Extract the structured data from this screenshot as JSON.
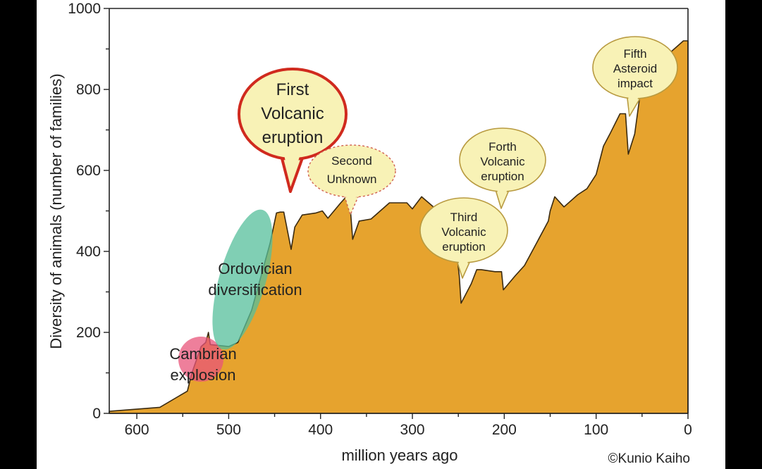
{
  "chart_data": {
    "type": "area",
    "xlabel": "million years ago",
    "ylabel": "Diversity of animals (number of families)",
    "xlim": [
      630,
      0
    ],
    "ylim": [
      0,
      1000
    ],
    "x_ticks": [
      "600",
      "500",
      "400",
      "300",
      "200",
      "100",
      "0"
    ],
    "y_ticks": [
      "0",
      "200",
      "400",
      "600",
      "800",
      "1000"
    ],
    "grid": false,
    "fill_color": "#E6A32E",
    "series": [
      {
        "x": [
          630,
          575,
          545,
          540,
          530,
          525,
          522,
          520,
          500,
          490,
          475,
          455,
          448,
          444,
          440,
          432,
          428,
          420,
          405,
          398,
          392,
          378,
          372,
          368,
          365,
          358,
          345,
          325,
          315,
          306,
          300,
          290,
          272,
          262,
          255,
          252,
          249,
          247,
          236,
          230,
          225,
          210,
          203,
          201,
          188,
          178,
          165,
          152,
          150,
          145,
          135,
          120,
          110,
          100,
          92,
          85,
          74,
          68,
          65,
          58,
          52,
          45,
          32,
          20,
          5,
          0
        ],
        "y": [
          5,
          15,
          55,
          100,
          165,
          175,
          200,
          170,
          165,
          175,
          255,
          420,
          495,
          497,
          497,
          405,
          460,
          490,
          495,
          500,
          482,
          520,
          535,
          520,
          430,
          475,
          480,
          520,
          520,
          520,
          505,
          535,
          500,
          490,
          460,
          400,
          340,
          272,
          320,
          355,
          355,
          350,
          350,
          305,
          340,
          365,
          420,
          475,
          500,
          535,
          510,
          540,
          555,
          590,
          660,
          690,
          740,
          740,
          640,
          690,
          790,
          830,
          860,
          890,
          920,
          920
        ]
      }
    ],
    "annotations": [
      {
        "label": [
          "Cambrian",
          "explosion"
        ],
        "color": "#E8547A"
      },
      {
        "label": [
          "Ordovician",
          "diversification"
        ],
        "color": "#55BF9B"
      },
      {
        "label": [
          "First",
          "Volcanic",
          "eruption"
        ],
        "border": "#D02A1E"
      },
      {
        "label": [
          "Second",
          "Unknown"
        ],
        "border": "#D06050"
      },
      {
        "label": [
          "Third",
          "Volcanic",
          "eruption"
        ],
        "border": "#B89A40"
      },
      {
        "label": [
          "Forth",
          "Volcanic",
          "eruption"
        ],
        "border": "#B89A40"
      },
      {
        "label": [
          "Fifth",
          "Asteroid",
          "impact"
        ],
        "border": "#B89A40"
      }
    ],
    "credit": "©Kunio Kaiho"
  },
  "colors": {
    "bubble_fill": "#F8F2B6"
  }
}
